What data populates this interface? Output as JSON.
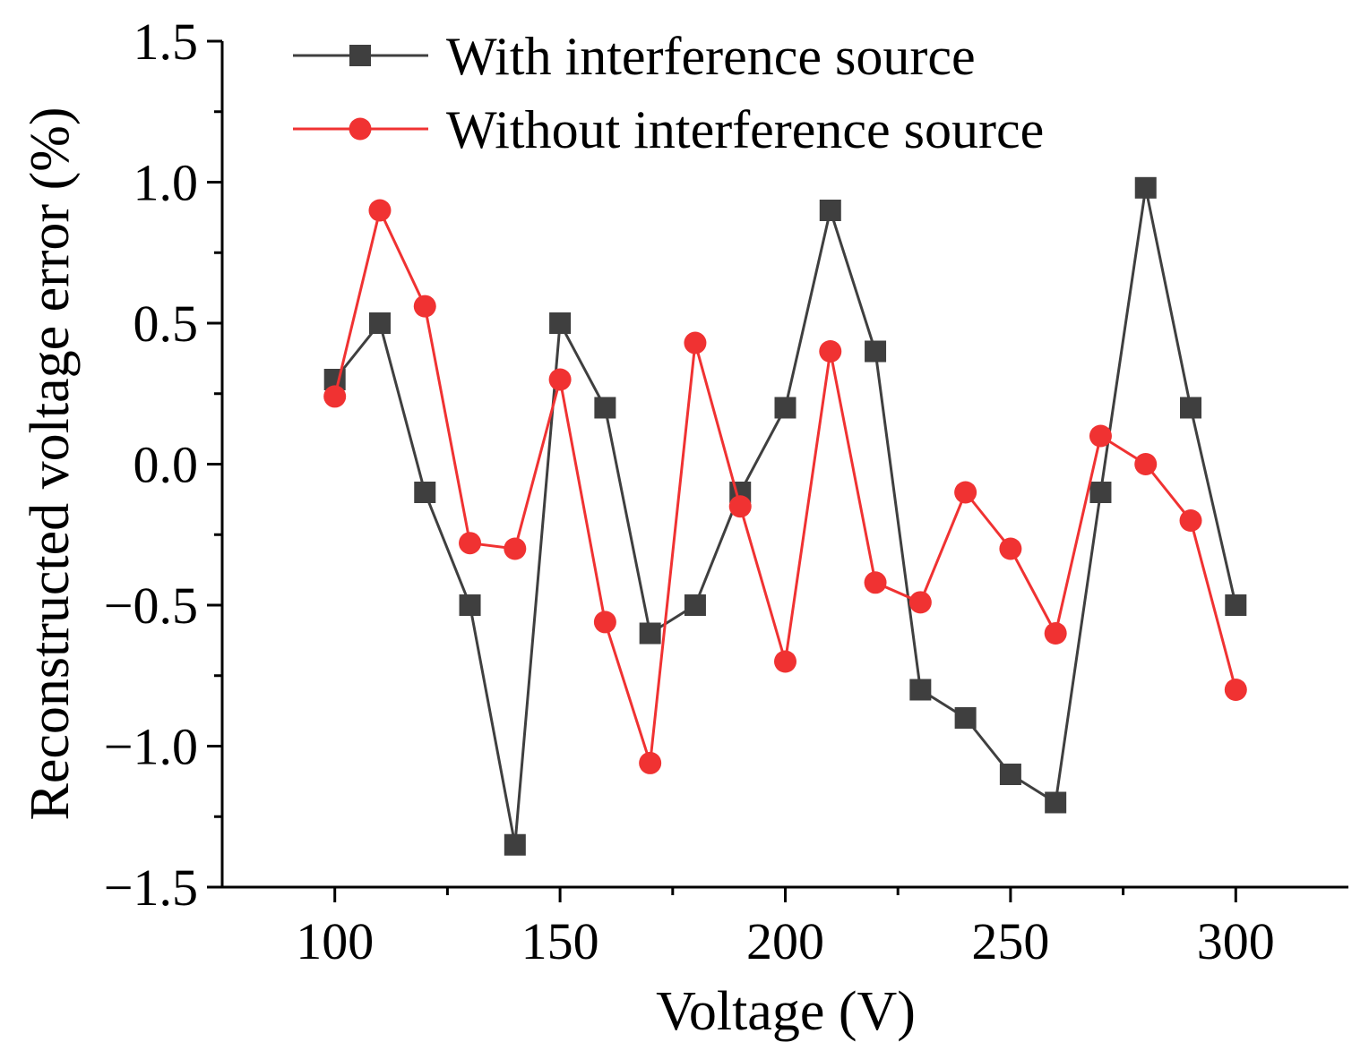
{
  "chart_data": {
    "type": "line",
    "title": "",
    "xlabel": "Voltage (V)",
    "ylabel": "Reconstructed voltage error (%)",
    "xlim": [
      75,
      325
    ],
    "ylim": [
      -1.5,
      1.5
    ],
    "x_ticks": [
      100,
      150,
      200,
      250,
      300
    ],
    "x_tick_labels": [
      "100",
      "150",
      "200",
      "250",
      "300"
    ],
    "y_ticks": [
      1.5,
      1.0,
      0.5,
      0.0,
      -0.5,
      -1.0,
      -1.5
    ],
    "y_tick_labels": [
      "1.5",
      "1.0",
      "0.5",
      "0.0",
      "−0.5",
      "−1.0",
      "−1.5"
    ],
    "grid": false,
    "legend_position": "top-left",
    "x": [
      100,
      110,
      120,
      130,
      140,
      150,
      160,
      170,
      180,
      190,
      200,
      210,
      220,
      230,
      240,
      250,
      260,
      270,
      280,
      290,
      300
    ],
    "series": [
      {
        "name": "With interference source",
        "color": "#3f3f3f",
        "marker": "square",
        "values": [
          0.3,
          0.5,
          -0.1,
          -0.5,
          -1.35,
          0.5,
          0.2,
          -0.6,
          -0.5,
          -0.1,
          0.2,
          0.9,
          0.4,
          -0.8,
          -0.9,
          -1.1,
          -1.2,
          -0.1,
          0.98,
          0.2,
          -0.5
        ]
      },
      {
        "name": "Without interference source",
        "color": "#f03232",
        "marker": "circle",
        "values": [
          0.24,
          0.9,
          0.56,
          -0.28,
          -0.3,
          0.3,
          -0.56,
          -1.06,
          0.43,
          -0.15,
          -0.7,
          0.4,
          -0.42,
          -0.49,
          -0.1,
          -0.3,
          -0.6,
          0.1,
          0.0,
          -0.2,
          -0.8
        ]
      }
    ]
  }
}
